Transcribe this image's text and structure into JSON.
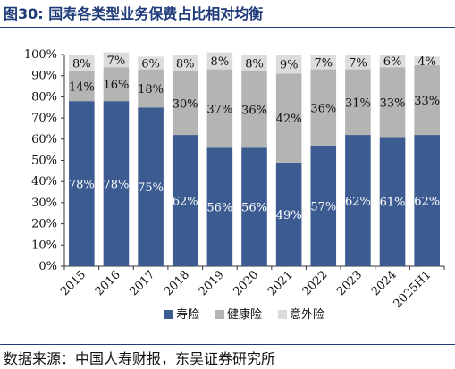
{
  "figure_title": "图30:  国寿各类型业务保费占比相对均衡",
  "source_note": "数据来源：中国人寿财报，东吴证券研究所",
  "chart_data": {
    "type": "bar",
    "stacked": true,
    "categories": [
      "2015",
      "2016",
      "2017",
      "2018",
      "2019",
      "2020",
      "2021",
      "2022",
      "2023",
      "2024",
      "2025H1"
    ],
    "series": [
      {
        "name": "寿险",
        "values": [
          78,
          78,
          75,
          62,
          56,
          56,
          49,
          57,
          62,
          61,
          62
        ],
        "labels": [
          "78%",
          "78%",
          "75%",
          "62%",
          "56%",
          "56%",
          "49%",
          "57%",
          "62%",
          "61%",
          "62%"
        ],
        "color": "#3b5b91",
        "label_color": "#ffffff"
      },
      {
        "name": "健康险",
        "values": [
          14,
          16,
          18,
          30,
          37,
          36,
          42,
          36,
          31,
          33,
          33
        ],
        "labels": [
          "14%",
          "16%",
          "18%",
          "30%",
          "37%",
          "36%",
          "42%",
          "36%",
          "31%",
          "33%",
          "33%"
        ],
        "color": "#b4b4b4",
        "label_color": "#111111"
      },
      {
        "name": "意外险",
        "values": [
          8,
          7,
          6,
          8,
          8,
          8,
          9,
          7,
          7,
          6,
          4
        ],
        "labels": [
          "8%",
          "7%",
          "6%",
          "8%",
          "8%",
          "8%",
          "9%",
          "7%",
          "7%",
          "6%",
          "4%"
        ],
        "color": "#dcdcdc",
        "label_color": "#111111"
      }
    ],
    "ylim": [
      0,
      100
    ],
    "yticks": [
      "0%",
      "10%",
      "20%",
      "30%",
      "40%",
      "50%",
      "60%",
      "70%",
      "80%",
      "90%",
      "100%"
    ],
    "grid": false,
    "legend_position": "bottom"
  }
}
